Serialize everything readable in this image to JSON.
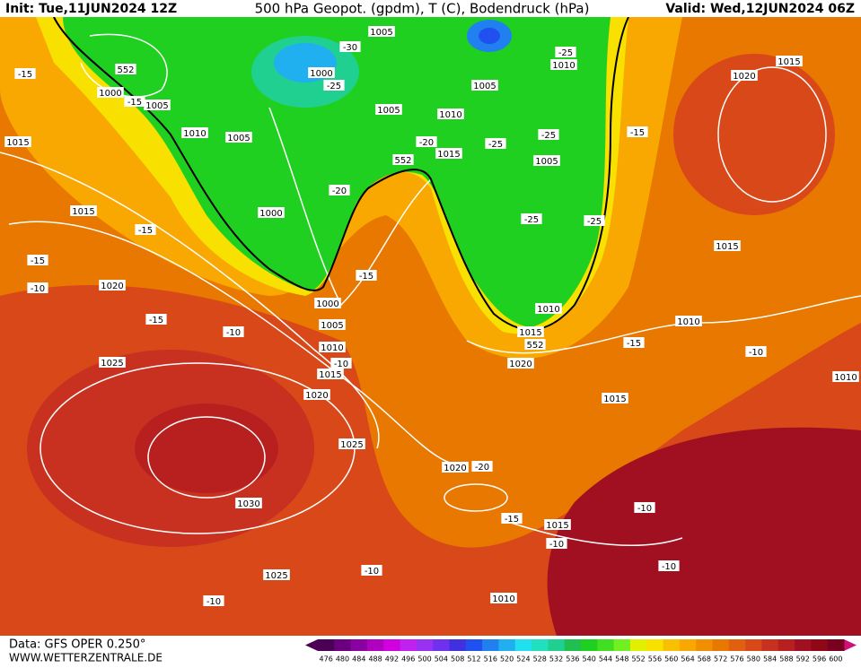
{
  "header": {
    "init": "Init: Tue,11JUN2024 12Z",
    "title": "500 hPa Geopot. (gpdm), T (C), Bodendruck (hPa)",
    "valid": "Valid: Wed,12JUN2024 06Z"
  },
  "footer": {
    "data": "Data: GFS OPER 0.250°",
    "site": "WWW.WETTERZENTRALE.DE"
  },
  "contour_labels": [
    "1005",
    "-30",
    "1010",
    "-25",
    "1000",
    "-25",
    "1005",
    "552",
    "1000",
    "-15",
    "1005",
    "-15",
    "1015",
    "1010",
    "1005",
    "1005",
    "1010",
    "-20",
    "-25",
    "-25",
    "-15",
    "1015",
    "552",
    "1005",
    "-20",
    "1000",
    "1015",
    "-15",
    "-25",
    "-25",
    "-15",
    "1015",
    "-10",
    "1020",
    "-15",
    "1000",
    "1005",
    "1010",
    "1010",
    "-15",
    "-10",
    "1015",
    "552",
    "1010",
    "-15",
    "-10",
    "1025",
    "-10",
    "1015",
    "1020",
    "1020",
    "1015",
    "1010",
    "1020",
    "1015",
    "1025",
    "1020",
    "-20",
    "1030",
    "-15",
    "-10",
    "1015",
    "-10",
    "1025",
    "-10",
    "-10",
    "-10",
    "1010"
  ],
  "legend": {
    "values": [
      476,
      480,
      484,
      488,
      492,
      496,
      500,
      504,
      508,
      512,
      516,
      520,
      524,
      528,
      532,
      536,
      540,
      544,
      548,
      552,
      556,
      560,
      564,
      568,
      572,
      576,
      580,
      584,
      588,
      592,
      596,
      600
    ],
    "colors": [
      "#4b0055",
      "#6a0080",
      "#8a00a0",
      "#b000c0",
      "#d000e0",
      "#c020f0",
      "#9a30f0",
      "#7030f0",
      "#4030e0",
      "#2050f0",
      "#2080f0",
      "#20b0f0",
      "#20e0f0",
      "#20e0c0",
      "#20d090",
      "#20c050",
      "#20d020",
      "#40e020",
      "#70f020",
      "#e0f000",
      "#f8e000",
      "#f8c000",
      "#f8a800",
      "#f09000",
      "#e87800",
      "#e06010",
      "#d84818",
      "#c83020",
      "#b82020",
      "#a01020",
      "#900818",
      "#7a0020"
    ]
  }
}
